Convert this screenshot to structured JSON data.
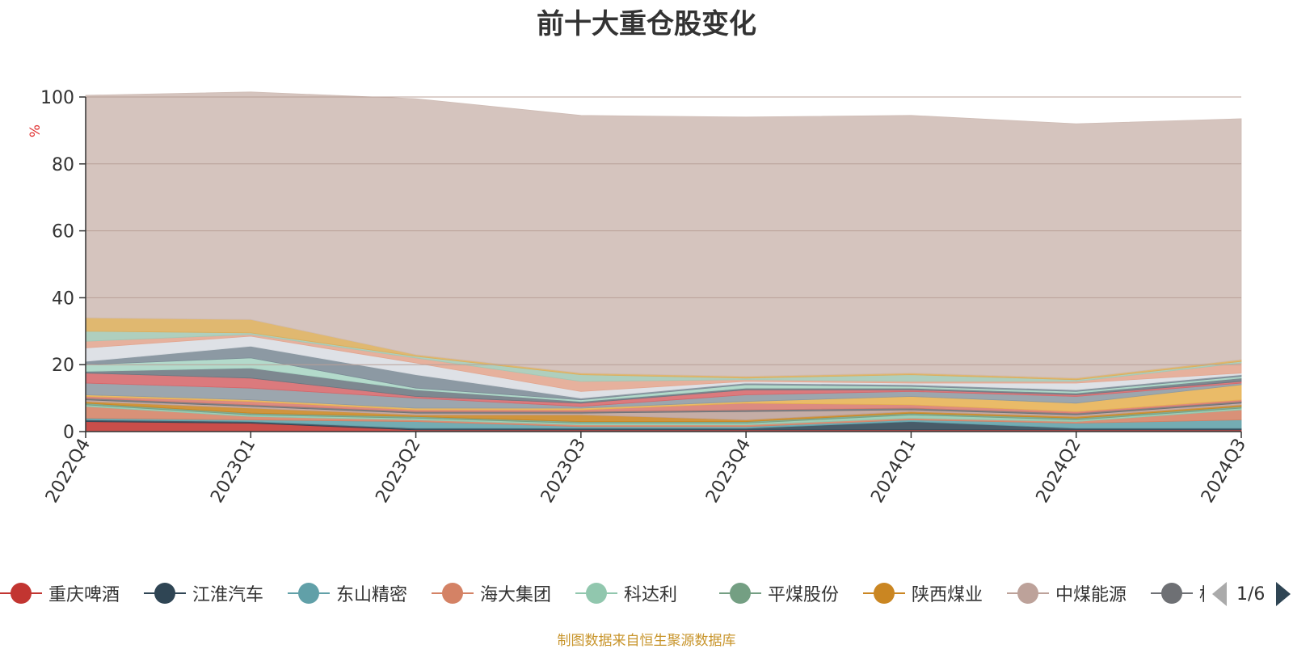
{
  "title": "前十大重仓股变化",
  "source_note": "制图数据来自恒生聚源数据库",
  "pager": {
    "text": "1/6"
  },
  "chart_data": {
    "type": "area",
    "title": "前十大重仓股变化",
    "ylabel": "%",
    "ylim": [
      0,
      100
    ],
    "yticks": [
      0,
      20,
      40,
      60,
      80,
      100
    ],
    "categories": [
      "2022Q4",
      "2023Q1",
      "2023Q2",
      "2023Q3",
      "2023Q4",
      "2024Q1",
      "2024Q2",
      "2024Q3"
    ],
    "grid": true,
    "stacked": true,
    "series": [
      {
        "name": "重庆啤酒",
        "color": "#c23531",
        "values": [
          3,
          2.5,
          0.5,
          0.5,
          0.5,
          0.5,
          0.5,
          0.5
        ]
      },
      {
        "name": "江淮汽车",
        "color": "#2f4554",
        "values": [
          0.5,
          0.5,
          0.5,
          0.5,
          0.5,
          2.5,
          0.5,
          0.5
        ]
      },
      {
        "name": "东山精密",
        "color": "#61a0a8",
        "values": [
          0.5,
          0.5,
          2,
          0.5,
          0.5,
          0.5,
          1.5,
          2.5
        ]
      },
      {
        "name": "海大集团",
        "color": "#d48265",
        "values": [
          3.5,
          1,
          0.5,
          0.5,
          0.5,
          0.5,
          0.5,
          3
        ]
      },
      {
        "name": "科达利",
        "color": "#91c7ae",
        "values": [
          0.5,
          0.5,
          0.5,
          0.5,
          0.5,
          1,
          0.5,
          0.5
        ]
      },
      {
        "name": "平煤股份",
        "color": "#749f83",
        "values": [
          0.5,
          0.5,
          0.5,
          0.5,
          0.5,
          0.5,
          0.5,
          0.5
        ]
      },
      {
        "name": "陕西煤业",
        "color": "#ca8622",
        "values": [
          0.5,
          1.5,
          0.5,
          2,
          0.5,
          0.5,
          0.5,
          0.5
        ]
      },
      {
        "name": "中煤能源",
        "color": "#bda29a",
        "values": [
          0.5,
          0.5,
          0.5,
          0.5,
          2.5,
          0.5,
          0.5,
          0.5
        ]
      },
      {
        "name": "格力电器",
        "color": "#6e7074",
        "values": [
          0.5,
          0.5,
          0.5,
          0.5,
          0.5,
          0.5,
          0.5,
          0.5
        ]
      },
      {
        "name": "",
        "color": "#d77b6f",
        "values": [
          0.5,
          1,
          0.5,
          0.5,
          2,
          1,
          0.5,
          0.5
        ]
      },
      {
        "name": "",
        "color": "#e7b253",
        "values": [
          0.5,
          0.5,
          0.5,
          0.5,
          0.5,
          2.5,
          2.5,
          4.5
        ]
      },
      {
        "name": "",
        "color": "#8e9aa3",
        "values": [
          3.5,
          3.5,
          3,
          0.5,
          2,
          1.5,
          2,
          0.5
        ]
      },
      {
        "name": "",
        "color": "#d6686b",
        "values": [
          3,
          3,
          0.5,
          1,
          1.5,
          0.5,
          0.5,
          0.5
        ]
      },
      {
        "name": "",
        "color": "#6b7781",
        "values": [
          0.5,
          3,
          2,
          0.5,
          0.5,
          0.5,
          0.5,
          1
        ]
      },
      {
        "name": "",
        "color": "#a8d5c4",
        "values": [
          2,
          3,
          0.5,
          0.5,
          1,
          0.5,
          0.5,
          0.5
        ]
      },
      {
        "name": "",
        "color": "#7c8b96",
        "values": [
          1,
          3.5,
          4,
          0.5,
          0.5,
          0.5,
          0.5,
          0.5
        ]
      },
      {
        "name": "",
        "color": "#d9dde2",
        "values": [
          4,
          3,
          3.5,
          2,
          0.5,
          0.5,
          2,
          0.5
        ]
      },
      {
        "name": "",
        "color": "#e3a690",
        "values": [
          2,
          0.5,
          1.5,
          3,
          0.5,
          0.5,
          0.5,
          3
        ]
      },
      {
        "name": "",
        "color": "#a4c8b5",
        "values": [
          3,
          0.5,
          0.5,
          2,
          0.5,
          2,
          0.5,
          0.5
        ]
      },
      {
        "name": "",
        "color": "#dcae5c",
        "values": [
          4,
          4,
          0.5,
          0.5,
          0.5,
          0.5,
          0.5,
          0.5
        ]
      },
      {
        "name": "",
        "color": "#cfbcb5",
        "values": [
          66.5,
          68,
          76.5,
          77,
          77.5,
          77,
          76,
          72
        ]
      }
    ]
  }
}
